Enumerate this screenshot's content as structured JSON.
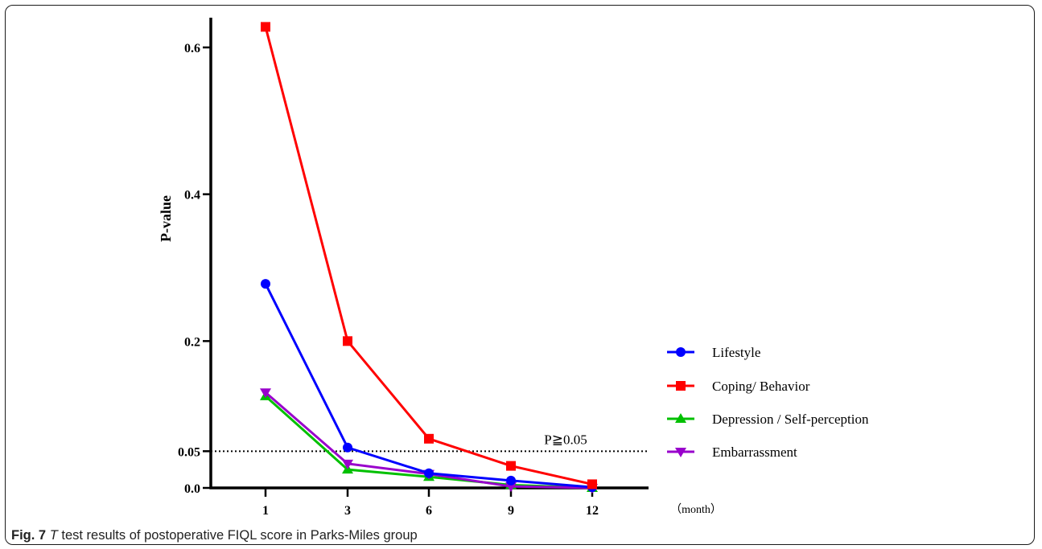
{
  "chart_data": {
    "type": "line",
    "x": [
      1,
      3,
      6,
      9,
      12
    ],
    "x_tick_labels": [
      "1",
      "3",
      "6",
      "9",
      "12"
    ],
    "x_unit_label": "（month）",
    "ylabel": "P-value",
    "ylim": [
      0,
      0.63
    ],
    "y_ticks": [
      0.0,
      0.05,
      0.2,
      0.4,
      0.6
    ],
    "y_tick_labels": [
      "0.0",
      "0.05",
      "0.2",
      "0.4",
      "0.6"
    ],
    "reference_line": {
      "y": 0.05,
      "label": "P≧0.05",
      "style": "dotted"
    },
    "legend_position": "right",
    "grid": false,
    "series": [
      {
        "name": "Lifestyle",
        "color": "#0000ff",
        "marker": "circle",
        "values": [
          0.278,
          0.055,
          0.02,
          0.01,
          0.001
        ]
      },
      {
        "name": "Coping/ Behavior",
        "color": "#ff0000",
        "marker": "square",
        "values": [
          0.628,
          0.2,
          0.067,
          0.03,
          0.005
        ]
      },
      {
        "name": "Depression / Self-perception",
        "color": "#00c000",
        "marker": "triangle-up",
        "values": [
          0.125,
          0.025,
          0.015,
          0.004,
          0.0
        ]
      },
      {
        "name": "Embarrassment",
        "color": "#9900cc",
        "marker": "triangle-down",
        "values": [
          0.13,
          0.033,
          0.019,
          0.002,
          0.0
        ]
      }
    ]
  },
  "caption": {
    "label": "Fig. 7",
    "italic": "T",
    "text": " test results of postoperative FIQL score in Parks-Miles group"
  }
}
